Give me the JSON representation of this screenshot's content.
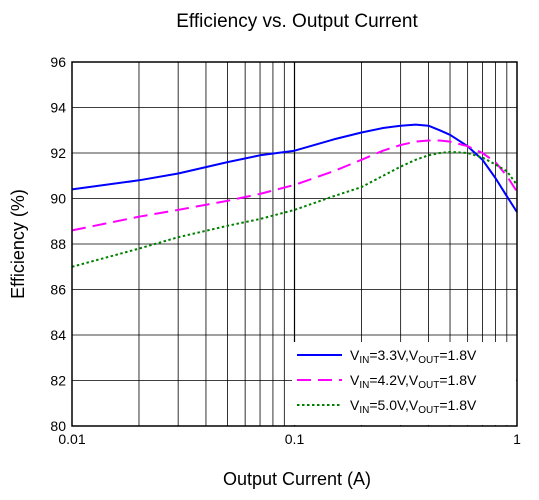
{
  "chart_data": {
    "type": "line",
    "title": "Efficiency vs. Output Current",
    "xlabel": "Output Current (A)",
    "ylabel": "Efficiency (%)",
    "x_scale": "log",
    "xlim": [
      0.01,
      1
    ],
    "ylim": [
      80,
      96
    ],
    "x_ticks": [
      0.01,
      0.1,
      1
    ],
    "x_tick_labels": [
      "0.01",
      "0.1",
      "1"
    ],
    "y_ticks": [
      80,
      82,
      84,
      86,
      88,
      90,
      92,
      94,
      96
    ],
    "y_tick_labels": [
      "80",
      "82",
      "84",
      "86",
      "88",
      "90",
      "92",
      "94",
      "96"
    ],
    "grid": true,
    "legend_position": "bottom-right",
    "series": [
      {
        "legend": {
          "pre": "V",
          "sub1": "IN",
          "mid": "=3.3V,V",
          "sub2": "OUT",
          "post": "=1.8V"
        },
        "color": "#0000ff",
        "style": "solid",
        "x": [
          0.01,
          0.02,
          0.03,
          0.05,
          0.07,
          0.1,
          0.15,
          0.2,
          0.25,
          0.3,
          0.35,
          0.4,
          0.45,
          0.5,
          0.6,
          0.7,
          0.8,
          0.9,
          1.0
        ],
        "y": [
          90.4,
          90.8,
          91.1,
          91.6,
          91.9,
          92.1,
          92.6,
          92.9,
          93.1,
          93.2,
          93.25,
          93.2,
          93.0,
          92.8,
          92.3,
          91.7,
          90.9,
          90.1,
          89.4
        ]
      },
      {
        "legend": {
          "pre": "V",
          "sub1": "IN",
          "mid": "=4.2V,V",
          "sub2": "OUT",
          "post": "=1.8V"
        },
        "color": "#ff00ff",
        "style": "dashed",
        "x": [
          0.01,
          0.02,
          0.03,
          0.05,
          0.07,
          0.1,
          0.15,
          0.2,
          0.25,
          0.3,
          0.35,
          0.4,
          0.45,
          0.5,
          0.6,
          0.7,
          0.8,
          0.9,
          1.0
        ],
        "y": [
          88.6,
          89.2,
          89.5,
          89.9,
          90.2,
          90.6,
          91.2,
          91.7,
          92.1,
          92.35,
          92.5,
          92.55,
          92.55,
          92.5,
          92.3,
          92.0,
          91.6,
          91.0,
          90.3
        ]
      },
      {
        "legend": {
          "pre": "V",
          "sub1": "IN",
          "mid": "=5.0V,V",
          "sub2": "OUT",
          "post": "=1.8V"
        },
        "color": "#008000",
        "style": "dotted",
        "x": [
          0.01,
          0.02,
          0.03,
          0.05,
          0.07,
          0.1,
          0.15,
          0.2,
          0.25,
          0.3,
          0.35,
          0.4,
          0.45,
          0.5,
          0.6,
          0.7,
          0.8,
          0.9,
          1.0
        ],
        "y": [
          87.0,
          87.8,
          88.3,
          88.8,
          89.1,
          89.5,
          90.1,
          90.5,
          91.0,
          91.4,
          91.7,
          91.9,
          92.0,
          92.05,
          92.0,
          91.8,
          91.5,
          91.2,
          90.6
        ]
      }
    ]
  }
}
